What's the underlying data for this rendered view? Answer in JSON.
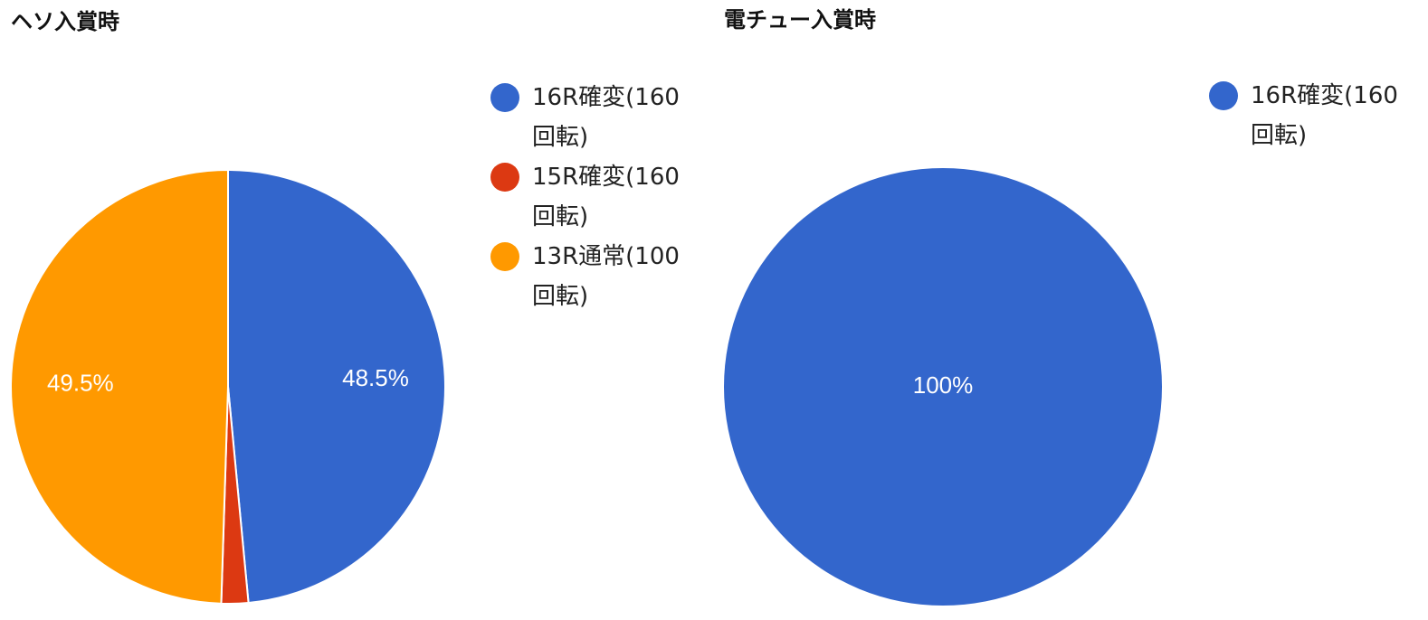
{
  "chart_data": [
    {
      "type": "pie",
      "title": "ヘソ入賞時",
      "slices": [
        {
          "label": "16R確変(160回転)",
          "legend_lines": [
            "16R確変(160",
            "回転)"
          ],
          "value": 48.5,
          "display": "48.5%",
          "color": "#3366cc"
        },
        {
          "label": "15R確変(160回転)",
          "legend_lines": [
            "15R確変(160",
            "回転)"
          ],
          "value": 2.0,
          "display": "",
          "color": "#dc3912"
        },
        {
          "label": "13R通常(100回転)",
          "legend_lines": [
            "13R通常(100",
            "回転)"
          ],
          "value": 49.5,
          "display": "49.5%",
          "color": "#ff9900"
        }
      ],
      "legend_position": "right"
    },
    {
      "type": "pie",
      "title": "電チュー入賞時",
      "slices": [
        {
          "label": "16R確変(160回転)",
          "legend_lines": [
            "16R確変(160",
            "回転)"
          ],
          "value": 100,
          "display": "100%",
          "color": "#3366cc"
        }
      ],
      "legend_position": "right"
    }
  ]
}
